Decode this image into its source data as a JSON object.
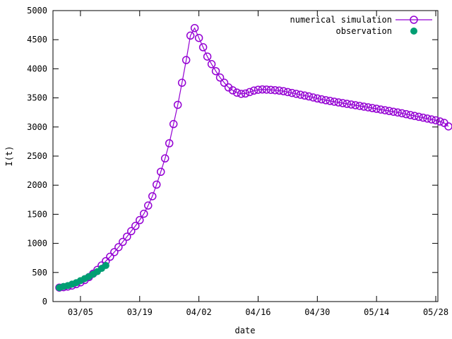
{
  "chart_data": {
    "type": "line",
    "xlabel": "date",
    "ylabel": "I(t)",
    "ylim": [
      0,
      5000
    ],
    "xlim_days": [
      -1.5,
      89.5
    ],
    "grid": false,
    "legend_position": "top-right",
    "y_ticks": [
      0,
      500,
      1000,
      1500,
      2000,
      2500,
      3000,
      3500,
      4000,
      4500,
      5000
    ],
    "x_ticks": [
      {
        "date": "2020-03-05",
        "label": "03/05"
      },
      {
        "date": "2020-03-19",
        "label": "03/19"
      },
      {
        "date": "2020-04-02",
        "label": "04/02"
      },
      {
        "date": "2020-04-16",
        "label": "04/16"
      },
      {
        "date": "2020-04-30",
        "label": "04/30"
      },
      {
        "date": "2020-05-14",
        "label": "05/14"
      },
      {
        "date": "2020-05-28",
        "label": "05/28"
      }
    ],
    "series": [
      {
        "name": "numerical simulation",
        "color": "#9400D3",
        "marker": "open-circle",
        "line": true,
        "x": [
          "2020-02-29",
          "2020-03-01",
          "2020-03-02",
          "2020-03-03",
          "2020-03-04",
          "2020-03-05",
          "2020-03-06",
          "2020-03-07",
          "2020-03-08",
          "2020-03-09",
          "2020-03-10",
          "2020-03-11",
          "2020-03-12",
          "2020-03-13",
          "2020-03-14",
          "2020-03-15",
          "2020-03-16",
          "2020-03-17",
          "2020-03-18",
          "2020-03-19",
          "2020-03-20",
          "2020-03-21",
          "2020-03-22",
          "2020-03-23",
          "2020-03-24",
          "2020-03-25",
          "2020-03-26",
          "2020-03-27",
          "2020-03-28",
          "2020-03-29",
          "2020-03-30",
          "2020-03-31",
          "2020-04-01",
          "2020-04-02",
          "2020-04-03",
          "2020-04-04",
          "2020-04-05",
          "2020-04-06",
          "2020-04-07",
          "2020-04-08",
          "2020-04-09",
          "2020-04-10",
          "2020-04-11",
          "2020-04-12",
          "2020-04-13",
          "2020-04-14",
          "2020-04-15",
          "2020-04-16",
          "2020-04-17",
          "2020-04-18",
          "2020-04-19",
          "2020-04-20",
          "2020-04-21",
          "2020-04-22",
          "2020-04-23",
          "2020-04-24",
          "2020-04-25",
          "2020-04-26",
          "2020-04-27",
          "2020-04-28",
          "2020-04-29",
          "2020-04-30",
          "2020-05-01",
          "2020-05-02",
          "2020-05-03",
          "2020-05-04",
          "2020-05-05",
          "2020-05-06",
          "2020-05-07",
          "2020-05-08",
          "2020-05-09",
          "2020-05-10",
          "2020-05-11",
          "2020-05-12",
          "2020-05-13",
          "2020-05-14",
          "2020-05-15",
          "2020-05-16",
          "2020-05-17",
          "2020-05-18",
          "2020-05-19",
          "2020-05-20",
          "2020-05-21",
          "2020-05-22",
          "2020-05-23",
          "2020-05-24",
          "2020-05-25",
          "2020-05-26",
          "2020-05-27",
          "2020-05-28",
          "2020-05-29",
          "2020-05-30",
          "2020-05-31"
        ],
        "y": [
          240,
          248,
          258,
          275,
          300,
          330,
          370,
          420,
          480,
          545,
          620,
          695,
          770,
          850,
          935,
          1025,
          1115,
          1210,
          1300,
          1400,
          1510,
          1650,
          1810,
          2010,
          2230,
          2460,
          2720,
          3050,
          3380,
          3760,
          4150,
          4570,
          4700,
          4530,
          4370,
          4210,
          4080,
          3960,
          3850,
          3760,
          3680,
          3630,
          3590,
          3570,
          3575,
          3600,
          3625,
          3640,
          3645,
          3643,
          3638,
          3632,
          3625,
          3615,
          3600,
          3585,
          3570,
          3555,
          3540,
          3525,
          3508,
          3490,
          3475,
          3460,
          3448,
          3435,
          3422,
          3410,
          3398,
          3386,
          3374,
          3362,
          3350,
          3338,
          3325,
          3313,
          3300,
          3288,
          3275,
          3262,
          3250,
          3236,
          3220,
          3205,
          3190,
          3175,
          3160,
          3145,
          3130,
          3115,
          3095,
          3070,
          3010
        ]
      },
      {
        "name": "observation",
        "color": "#009E73",
        "marker": "filled-circle",
        "line": false,
        "x": [
          "2020-02-29",
          "2020-03-01",
          "2020-03-02",
          "2020-03-03",
          "2020-03-04",
          "2020-03-05",
          "2020-03-06",
          "2020-03-07",
          "2020-03-08",
          "2020-03-09",
          "2020-03-10",
          "2020-03-11"
        ],
        "y": [
          240,
          260,
          275,
          300,
          325,
          360,
          395,
          430,
          470,
          515,
          570,
          620
        ]
      }
    ]
  }
}
